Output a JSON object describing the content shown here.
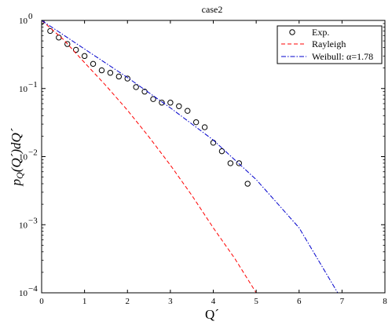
{
  "chart_data": {
    "type": "scatter",
    "title": "case2",
    "xlabel": "Q´",
    "ylabel_parts": {
      "p": "p",
      "sub": "Q",
      "rest": "(Q´)dQ´"
    },
    "xlim": [
      0,
      8
    ],
    "ylim": [
      0.0001,
      1
    ],
    "yscale": "log",
    "grid": false,
    "legend_position": "top-right",
    "x_ticks": [
      0,
      1,
      2,
      3,
      4,
      5,
      6,
      7,
      8
    ],
    "y_ticks": [
      {
        "value": 1,
        "base": "10",
        "exp": "0"
      },
      {
        "value": 0.1,
        "base": "10",
        "exp": "−1"
      },
      {
        "value": 0.01,
        "base": "10",
        "exp": "−2"
      },
      {
        "value": 0.001,
        "base": "10",
        "exp": "−3"
      },
      {
        "value": 0.0001,
        "base": "10",
        "exp": "−4"
      }
    ],
    "series": [
      {
        "name": "Exp.",
        "kind": "markers",
        "color": "#000000",
        "x": [
          0.0,
          0.2,
          0.4,
          0.6,
          0.8,
          1.0,
          1.2,
          1.4,
          1.6,
          1.8,
          2.0,
          2.2,
          2.4,
          2.6,
          2.8,
          3.0,
          3.2,
          3.4,
          3.6,
          3.8,
          4.0,
          4.2,
          4.4,
          4.6,
          4.8
        ],
        "y": [
          0.95,
          0.7,
          0.56,
          0.45,
          0.37,
          0.3,
          0.23,
          0.185,
          0.17,
          0.15,
          0.14,
          0.105,
          0.09,
          0.07,
          0.062,
          0.062,
          0.055,
          0.047,
          0.032,
          0.027,
          0.016,
          0.012,
          0.008,
          0.008,
          0.004
        ]
      },
      {
        "name": "Rayleigh",
        "kind": "dashed",
        "color": "#ff0000",
        "x": [
          0,
          0.5,
          1.0,
          1.5,
          2.0,
          2.5,
          3.0,
          3.5,
          4.0,
          4.5,
          5.0
        ],
        "y": [
          1.0,
          0.53,
          0.24,
          0.11,
          0.048,
          0.0195,
          0.0075,
          0.0027,
          0.0009,
          0.00032,
          0.0001
        ]
      },
      {
        "name": "Weibull: α=1.78",
        "kind": "dashdot",
        "color": "#0000cc",
        "x": [
          0,
          1,
          2,
          3,
          4,
          5,
          6,
          6.9
        ],
        "y": [
          1.0,
          0.38,
          0.145,
          0.052,
          0.0175,
          0.0046,
          0.0009,
          0.0001
        ]
      }
    ]
  }
}
